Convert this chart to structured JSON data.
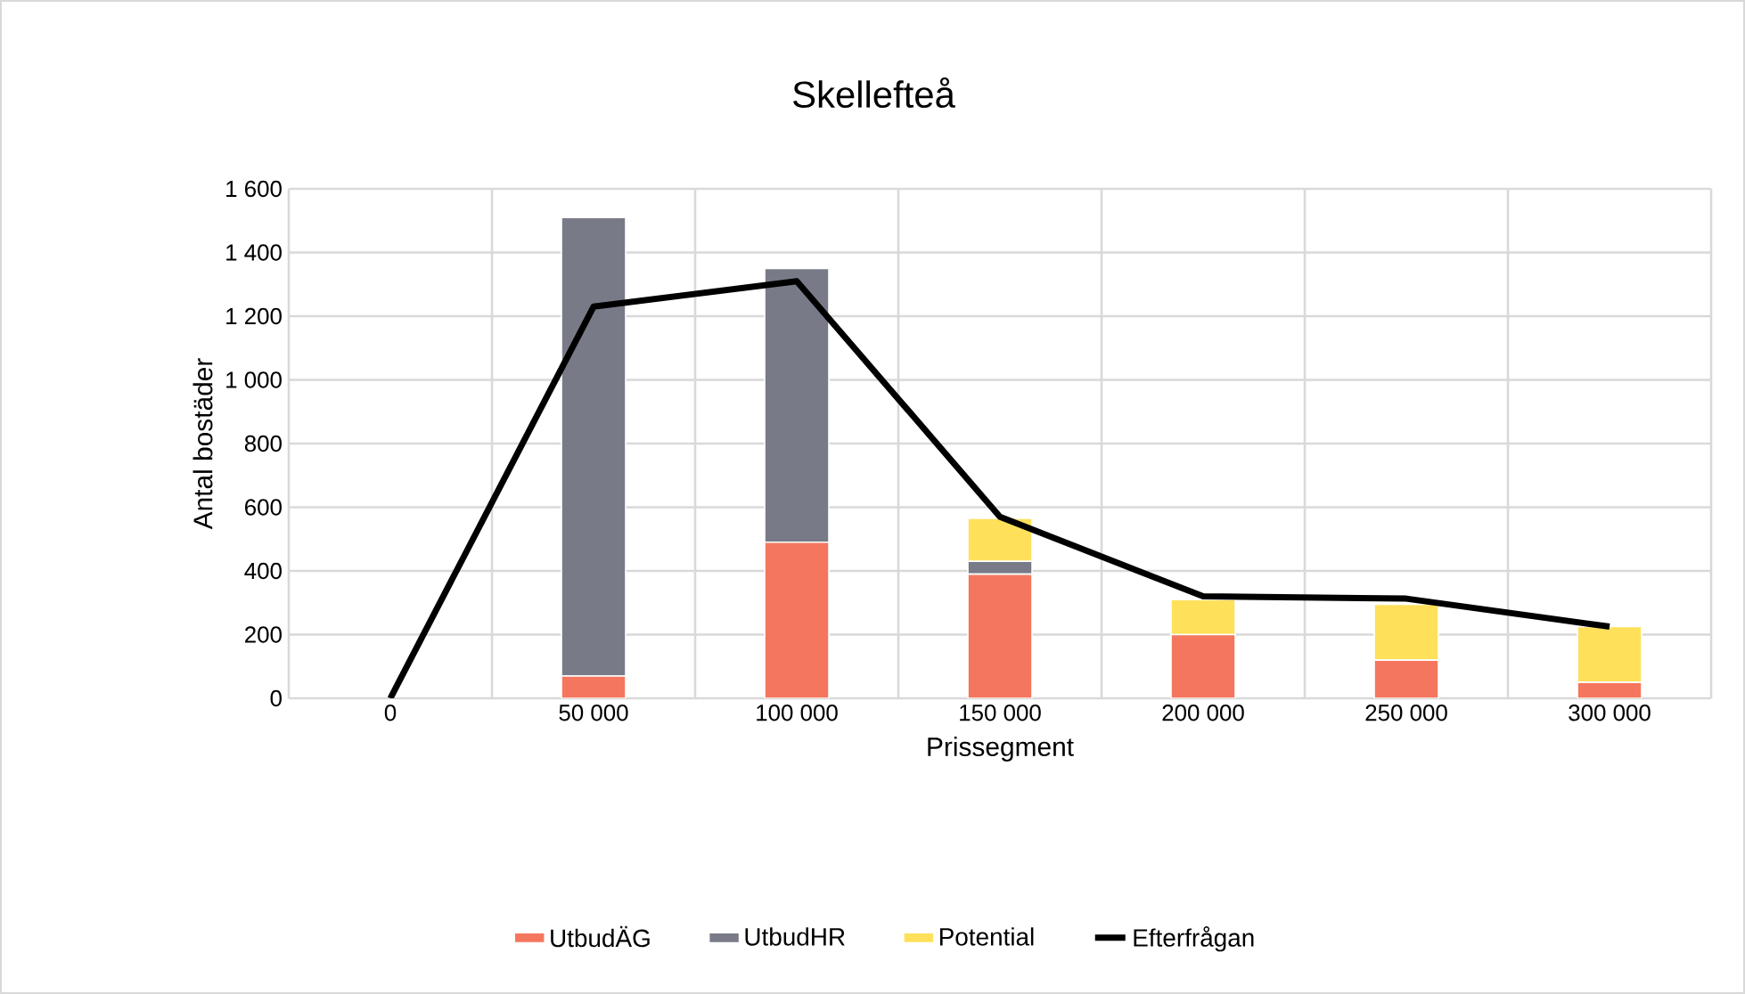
{
  "chart_data": {
    "type": "bar",
    "title": "Skellefteå",
    "xlabel": "Prissegment",
    "ylabel": "Antal bostäder",
    "categories": [
      "0",
      "50 000",
      "100 000",
      "150 000",
      "200 000",
      "250 000",
      "300 000"
    ],
    "stacked": true,
    "series": [
      {
        "name": "UtbudÄG",
        "color": "#f4765e",
        "values": [
          0,
          70,
          490,
          390,
          200,
          120,
          50
        ]
      },
      {
        "name": "UtbudHR",
        "color": "#787b87",
        "values": [
          0,
          1440,
          860,
          40,
          0,
          0,
          0
        ]
      },
      {
        "name": "Potential",
        "color": "#ffe05a",
        "values": [
          0,
          0,
          0,
          135,
          110,
          175,
          175
        ]
      },
      {
        "name": "Efterfrågan",
        "color": "#000000",
        "type": "line",
        "values": [
          0,
          1230,
          1310,
          570,
          320,
          313,
          225
        ]
      }
    ],
    "ylim": [
      0,
      1600
    ],
    "yticks": [
      0,
      200,
      400,
      600,
      800,
      {
        "value": 1000,
        "label": "1 000"
      },
      {
        "value": 1200,
        "label": "1 200"
      },
      {
        "value": 1400,
        "label": "1 400"
      },
      {
        "value": 1600,
        "label": "1 600"
      }
    ],
    "grid": true,
    "legend": "bottom"
  }
}
